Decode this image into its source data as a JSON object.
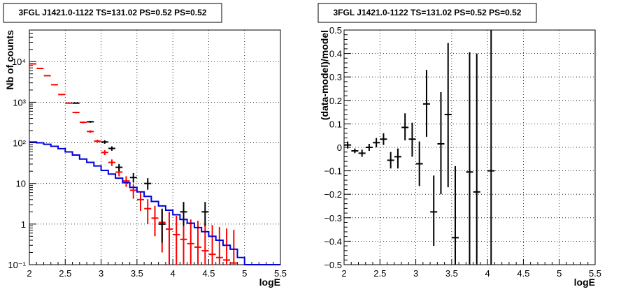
{
  "chart_data": [
    {
      "type": "scatter",
      "title": "3FGL J1421.0-1122 TS=131.02 PS=0.52 PS=0.52",
      "xlabel": "logE",
      "ylabel": "Nb of counts",
      "xlim": [
        2,
        5.5
      ],
      "ylim": [
        0.1,
        60000
      ],
      "yscale": "log",
      "grid": true,
      "x_ticks": [
        2,
        2.5,
        3,
        3.5,
        4,
        4.5,
        5,
        5.5
      ],
      "x_tick_labels": [
        "2",
        "2.5",
        "3",
        "3.5",
        "4",
        "4.5",
        "5",
        "5.5"
      ],
      "y_ticks": [
        0.1,
        1,
        10,
        100,
        1000,
        10000
      ],
      "y_tick_labels": [
        "10⁻¹",
        "1",
        "10",
        "10²",
        "10³",
        "10⁴"
      ],
      "series": [
        {
          "color": "#ff0000",
          "style": "errorbar",
          "points": [
            {
              "x": 2.05,
              "y": 8800,
              "lo": 8600,
              "hi": 9000
            },
            {
              "x": 2.15,
              "y": 6800,
              "lo": 6650,
              "hi": 6950
            },
            {
              "x": 2.25,
              "y": 4500,
              "lo": 4380,
              "hi": 4620
            },
            {
              "x": 2.35,
              "y": 2700,
              "lo": 2620,
              "hi": 2780
            },
            {
              "x": 2.45,
              "y": 1550,
              "lo": 1500,
              "hi": 1600
            },
            {
              "x": 2.55,
              "y": 950,
              "lo": 915,
              "hi": 985
            },
            {
              "x": 2.65,
              "y": 560,
              "lo": 535,
              "hi": 585
            },
            {
              "x": 2.75,
              "y": 320,
              "lo": 303,
              "hi": 337
            },
            {
              "x": 2.85,
              "y": 190,
              "lo": 177,
              "hi": 203
            },
            {
              "x": 2.95,
              "y": 110,
              "lo": 100,
              "hi": 120
            },
            {
              "x": 3.05,
              "y": 58,
              "lo": 50,
              "hi": 66
            },
            {
              "x": 3.15,
              "y": 33,
              "lo": 27,
              "hi": 39
            },
            {
              "x": 3.25,
              "y": 19,
              "lo": 15,
              "hi": 24
            },
            {
              "x": 3.35,
              "y": 11.5,
              "lo": 8.2,
              "hi": 15
            },
            {
              "x": 3.45,
              "y": 6.8,
              "lo": 4.2,
              "hi": 9.5
            },
            {
              "x": 3.55,
              "y": 4.0,
              "lo": 2.1,
              "hi": 6.2
            },
            {
              "x": 3.65,
              "y": 2.4,
              "lo": 1.0,
              "hi": 4.1
            },
            {
              "x": 3.75,
              "y": 1.4,
              "lo": 0.5,
              "hi": 2.8
            },
            {
              "x": 3.85,
              "y": 1.1,
              "lo": 0.2,
              "hi": 2.2
            },
            {
              "x": 3.95,
              "y": 0.75,
              "lo": 0.1,
              "hi": 2.0
            },
            {
              "x": 4.05,
              "y": 0.55,
              "lo": 0.1,
              "hi": 1.6
            },
            {
              "x": 4.15,
              "y": 0.42,
              "lo": 0.1,
              "hi": 1.5
            },
            {
              "x": 4.25,
              "y": 0.33,
              "lo": 0.1,
              "hi": 1.3
            },
            {
              "x": 4.35,
              "y": 0.27,
              "lo": 0.1,
              "hi": 1.2
            },
            {
              "x": 4.45,
              "y": 0.22,
              "lo": 0.1,
              "hi": 1.05
            },
            {
              "x": 4.55,
              "y": 0.18,
              "lo": 0.1,
              "hi": 0.95
            },
            {
              "x": 4.65,
              "y": 0.15,
              "lo": 0.1,
              "hi": 0.85
            },
            {
              "x": 4.75,
              "y": 0.13,
              "lo": 0.1,
              "hi": 0.78
            },
            {
              "x": 4.85,
              "y": 0.11,
              "lo": 0.1,
              "hi": 0.72
            }
          ]
        },
        {
          "color": "#000000",
          "style": "errorbar",
          "points": [
            {
              "x": 2.65,
              "y": 950,
              "lo": 915,
              "hi": 985
            },
            {
              "x": 2.85,
              "y": 330,
              "lo": 312,
              "hi": 348
            },
            {
              "x": 3.05,
              "y": 105,
              "lo": 95,
              "hi": 116
            },
            {
              "x": 3.15,
              "y": 73,
              "lo": 64,
              "hi": 82
            },
            {
              "x": 3.25,
              "y": 25,
              "lo": 20,
              "hi": 30
            },
            {
              "x": 3.45,
              "y": 14,
              "lo": 10.5,
              "hi": 18
            },
            {
              "x": 3.65,
              "y": 10,
              "lo": 7,
              "hi": 13.5
            },
            {
              "x": 3.85,
              "y": 1.0,
              "lo": 0.35,
              "hi": 2.4
            },
            {
              "x": 4.15,
              "y": 2.0,
              "lo": 0.9,
              "hi": 3.5
            },
            {
              "x": 4.45,
              "y": 2.0,
              "lo": 0.9,
              "hi": 3.5
            }
          ]
        },
        {
          "color": "#0000dd",
          "style": "step",
          "edges": [
            2.0,
            2.1,
            2.2,
            2.3,
            2.4,
            2.5,
            2.6,
            2.7,
            2.8,
            2.9,
            3.0,
            3.1,
            3.2,
            3.3,
            3.4,
            3.5,
            3.6,
            3.7,
            3.8,
            3.9,
            4.0,
            4.1,
            4.2,
            4.3,
            4.4,
            4.5,
            4.6,
            4.7,
            4.8,
            4.9,
            5.0,
            5.1,
            5.2,
            5.3,
            5.4,
            5.5
          ],
          "values": [
            105,
            100,
            92,
            82,
            72,
            60,
            50,
            40,
            33,
            27,
            21,
            17,
            13.5,
            10.5,
            8.0,
            6.2,
            4.8,
            3.6,
            2.8,
            2.2,
            1.7,
            1.3,
            1.05,
            0.82,
            0.65,
            0.5,
            0.4,
            0.3,
            0.24,
            0.15,
            0.1,
            0.1,
            0.1,
            0.1,
            0.1
          ]
        }
      ]
    },
    {
      "type": "scatter",
      "title": "3FGL J1421.0-1122 TS=131.02 PS=0.52 PS=0.52",
      "xlabel": "logE",
      "ylabel": "(data-model)/model",
      "xlim": [
        2,
        5.5
      ],
      "ylim": [
        -0.5,
        0.5
      ],
      "grid": true,
      "x_ticks": [
        2,
        2.5,
        3,
        3.5,
        4,
        4.5,
        5,
        5.5
      ],
      "x_tick_labels": [
        "2",
        "2.5",
        "3",
        "3.5",
        "4",
        "4.5",
        "5",
        "5.5"
      ],
      "y_ticks": [
        -0.5,
        -0.4,
        -0.3,
        -0.2,
        -0.1,
        0,
        0.1,
        0.2,
        0.3,
        0.4,
        0.5
      ],
      "y_tick_labels": [
        "−0.5",
        "−0.4",
        "−0.3",
        "−0.2",
        "−0.1",
        "0",
        "0.1",
        "0.2",
        "0.3",
        "0.4",
        "0.5"
      ],
      "series": [
        {
          "color": "#000000",
          "style": "errorbar",
          "points": [
            {
              "x": 2.05,
              "y": 0.01,
              "lo": -0.005,
              "hi": 0.025
            },
            {
              "x": 2.15,
              "y": -0.015,
              "lo": -0.025,
              "hi": -0.005
            },
            {
              "x": 2.25,
              "y": -0.025,
              "lo": -0.04,
              "hi": -0.01
            },
            {
              "x": 2.35,
              "y": 0.0,
              "lo": -0.015,
              "hi": 0.015
            },
            {
              "x": 2.45,
              "y": 0.02,
              "lo": 0.0,
              "hi": 0.04
            },
            {
              "x": 2.55,
              "y": 0.035,
              "lo": 0.01,
              "hi": 0.06
            },
            {
              "x": 2.65,
              "y": -0.055,
              "lo": -0.09,
              "hi": -0.02
            },
            {
              "x": 2.75,
              "y": -0.04,
              "lo": -0.09,
              "hi": -0.005
            },
            {
              "x": 2.85,
              "y": 0.085,
              "lo": 0.03,
              "hi": 0.145
            },
            {
              "x": 2.95,
              "y": 0.035,
              "lo": -0.04,
              "hi": 0.105
            },
            {
              "x": 3.05,
              "y": -0.07,
              "lo": -0.165,
              "hi": 0.025
            },
            {
              "x": 3.15,
              "y": 0.185,
              "lo": 0.045,
              "hi": 0.33
            },
            {
              "x": 3.25,
              "y": -0.275,
              "lo": -0.42,
              "hi": -0.12
            },
            {
              "x": 3.35,
              "y": 0.015,
              "lo": -0.2,
              "hi": 0.235
            },
            {
              "x": 3.45,
              "y": 0.14,
              "lo": -0.17,
              "hi": 0.445
            },
            {
              "x": 3.55,
              "y": -0.385,
              "lo": -0.5,
              "hi": -0.08
            },
            {
              "x": 3.75,
              "y": -0.105,
              "lo": -0.5,
              "hi": 0.405
            },
            {
              "x": 3.85,
              "y": -0.19,
              "lo": -0.5,
              "hi": 0.4
            },
            {
              "x": 4.05,
              "y": -0.1,
              "lo": -0.5,
              "hi": 0.5
            }
          ]
        }
      ]
    }
  ]
}
